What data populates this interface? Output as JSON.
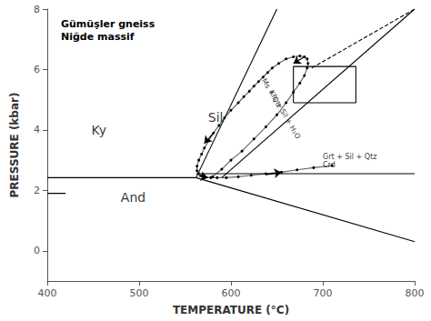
{
  "chart_data": {
    "type": "line",
    "title": "Gümüşler gneiss\nNiğde massif",
    "x_label": "TEMPERATURE (°C)",
    "y_label": "PRESSURE (kbar)",
    "xlim": [
      400,
      800
    ],
    "ylim": [
      -1,
      8
    ],
    "xticks": [
      400,
      500,
      600,
      700,
      800
    ],
    "yticks": [
      0,
      2,
      4,
      6,
      8
    ],
    "grid": false,
    "color": "#000000",
    "series": [
      {
        "type": "line",
        "x": [
          562,
          650
        ],
        "values": [
          2.42,
          8.0
        ]
      },
      {
        "type": "line",
        "x": [
          400,
          562
        ],
        "values": [
          2.42,
          2.42
        ]
      },
      {
        "type": "line",
        "x": [
          562,
          800
        ],
        "values": [
          2.42,
          0.3
        ]
      },
      {
        "type": "line",
        "x": [
          590,
          800
        ],
        "values": [
          2.42,
          8.0
        ]
      },
      {
        "type": "line",
        "line_style": "dashed",
        "x": [
          688,
          800
        ],
        "values": [
          6.05,
          8.0
        ]
      },
      {
        "type": "line",
        "x": [
          562,
          800
        ],
        "values": [
          2.55,
          2.55
        ]
      },
      {
        "type": "line",
        "x": [
          400,
          420
        ],
        "values": [
          1.9,
          1.9
        ]
      },
      {
        "type": "line",
        "x": [
          668,
          736,
          736,
          668,
          668
        ],
        "values": [
          4.9,
          4.9,
          6.1,
          6.1,
          4.9
        ]
      },
      {
        "type": "line",
        "marker": "dot",
        "x": [
          580,
          590,
          600,
          612,
          625,
          638,
          650,
          660,
          668,
          675,
          680,
          683,
          684,
          683,
          680,
          675,
          668,
          660,
          652,
          645,
          640,
          635,
          630,
          625,
          620,
          614,
          608,
          600,
          593,
          587,
          581,
          576,
          571,
          568,
          565,
          563,
          563,
          565,
          568,
          572,
          578,
          585,
          595,
          608,
          622,
          638,
          655,
          672,
          690,
          710
        ],
        "values": [
          2.45,
          2.7,
          3.0,
          3.3,
          3.7,
          4.1,
          4.5,
          4.9,
          5.25,
          5.55,
          5.8,
          6.05,
          6.2,
          6.35,
          6.42,
          6.45,
          6.42,
          6.35,
          6.2,
          6.05,
          5.9,
          5.75,
          5.6,
          5.45,
          5.28,
          5.1,
          4.9,
          4.65,
          4.4,
          4.15,
          3.9,
          3.65,
          3.4,
          3.2,
          3.0,
          2.8,
          2.65,
          2.55,
          2.48,
          2.44,
          2.42,
          2.42,
          2.42,
          2.45,
          2.5,
          2.55,
          2.6,
          2.68,
          2.75,
          2.82
        ]
      },
      {
        "type": "arrow",
        "x": [
          680,
          668
        ],
        "values": [
          6.42,
          6.2
        ]
      },
      {
        "type": "arrow",
        "x": [
          581,
          571
        ],
        "values": [
          3.9,
          3.55
        ]
      },
      {
        "type": "arrow",
        "x": [
          565,
          575
        ],
        "values": [
          2.48,
          2.42
        ]
      },
      {
        "type": "arrow",
        "x": [
          638,
          655
        ],
        "values": [
          2.52,
          2.6
        ]
      }
    ],
    "annotations": [
      {
        "text": "Ky",
        "x": 448,
        "y": 3.8
      },
      {
        "text": "Sil",
        "x": 575,
        "y": 4.2
      },
      {
        "text": "And",
        "x": 480,
        "y": 1.55
      }
    ],
    "reaction_labels": [
      {
        "text": "Grt + Sil + Qtz",
        "x": 700,
        "y": 3.0
      },
      {
        "text": "Crd",
        "x": 700,
        "y": 2.72
      }
    ],
    "curve_labels": [
      {
        "text": "Ms + Qtz",
        "x": 641,
        "y": 5.15
      },
      {
        "text": "Kfs + Sil + H₂O",
        "x": 655,
        "y": 4.45
      }
    ]
  }
}
